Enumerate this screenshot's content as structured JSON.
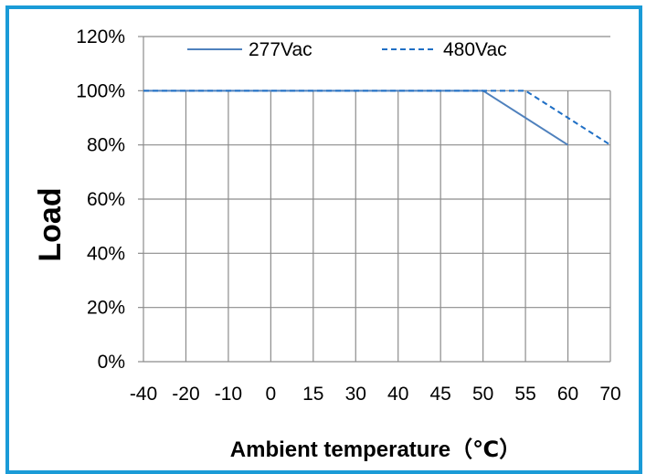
{
  "chart_data": {
    "type": "line",
    "title": "",
    "xlabel": "Ambient  temperature（℃）",
    "ylabel": "Load",
    "categories": [
      "-40",
      "-20",
      "-10",
      "0",
      "15",
      "30",
      "40",
      "45",
      "50",
      "55",
      "60",
      "70"
    ],
    "y_ticks": [
      "0%",
      "20%",
      "40%",
      "60%",
      "80%",
      "100%",
      "120%"
    ],
    "ylim": [
      0,
      120
    ],
    "grid": true,
    "legend_position": "top",
    "series": [
      {
        "name": "277Vac",
        "style": "solid",
        "color": "#4f81bd",
        "points": [
          [
            "-40",
            100
          ],
          [
            "50",
            100
          ],
          [
            "60",
            80
          ]
        ]
      },
      {
        "name": "480Vac",
        "style": "dashed",
        "color": "#1f6fc5",
        "points": [
          [
            "-40",
            100
          ],
          [
            "55",
            100
          ],
          [
            "70",
            80
          ]
        ]
      }
    ]
  }
}
